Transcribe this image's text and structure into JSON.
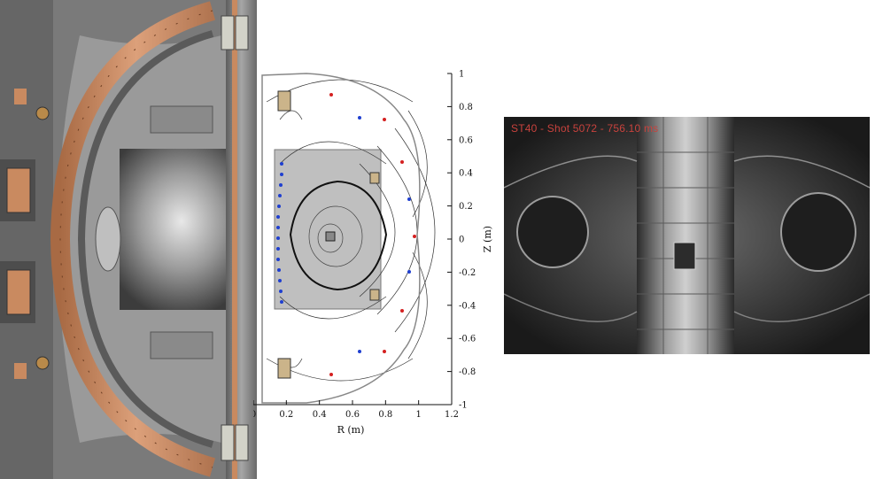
{
  "equilibrium_plot": {
    "xlabel": "R (m)",
    "ylabel": "Z (m)",
    "x_ticks": [
      "0",
      "0.2",
      "0.4",
      "0.6",
      "0.8",
      "1",
      "1.2"
    ],
    "y_ticks": [
      "1",
      "0.8",
      "0.6",
      "0.4",
      "0.2",
      "0",
      "-0.2",
      "-0.4",
      "-0.6",
      "-0.8",
      "-1"
    ]
  },
  "camera": {
    "caption": "ST40 - Shot 5072 - 756.10 ms"
  },
  "colors": {
    "copper": "#c98a60",
    "steel": "#8c8c8c",
    "probe_red": "#d42020",
    "probe_blue": "#1f3fd0",
    "caption_red": "#c8423d"
  }
}
